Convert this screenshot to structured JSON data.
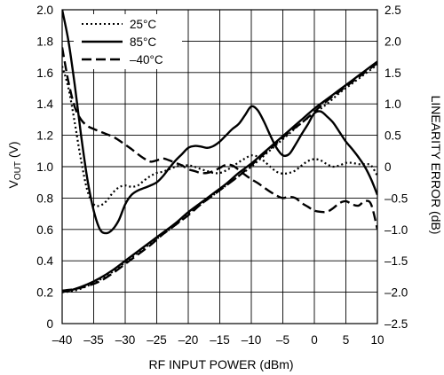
{
  "chart_data": {
    "type": "line",
    "xlabel": "RF INPUT POWER (dBm)",
    "ylabel_prefix": "V",
    "ylabel_sub": "OUT",
    "ylabel_suffix": " (V)",
    "y2label": "LINEARITY ERROR (dB)",
    "xlim": [
      -40,
      10
    ],
    "ylim": [
      0,
      2.0
    ],
    "y2lim": [
      -2.5,
      2.5
    ],
    "grid": true,
    "legend_position": "top-left",
    "x_ticks": [
      -40,
      -35,
      -30,
      -25,
      -20,
      -15,
      -10,
      -5,
      0,
      5,
      10
    ],
    "x_tick_labels": [
      "–40",
      "–35",
      "–30",
      "–25",
      "–20",
      "–15",
      "–10",
      "–5",
      "0",
      "5",
      "10"
    ],
    "y_ticks": [
      0,
      0.2,
      0.4,
      0.6,
      0.8,
      1.0,
      1.2,
      1.4,
      1.6,
      1.8,
      2.0
    ],
    "y_tick_labels": [
      "0",
      "0.2",
      "0.4",
      "0.6",
      "0.8",
      "1.0",
      "1.2",
      "1.4",
      "1.6",
      "1.8",
      "2.0"
    ],
    "y2_ticks": [
      -2.5,
      -2.0,
      -1.5,
      -1.0,
      -0.5,
      0,
      0.5,
      1.0,
      1.5,
      2.0,
      2.5
    ],
    "y2_tick_labels": [
      "–2.5",
      "–2.0",
      "–1.5",
      "–1.0",
      "–0.5",
      "0",
      "0.5",
      "1.0",
      "1.5",
      "2.0",
      "2.5"
    ],
    "legend": [
      {
        "label": "25°C",
        "style": "dotted"
      },
      {
        "label": "85°C",
        "style": "solid"
      },
      {
        "label": "–40°C",
        "style": "dashed"
      }
    ],
    "series": [
      {
        "name": "25°C",
        "style": "dotted",
        "axis": "left",
        "kind": "vout",
        "x": [
          -40,
          -38,
          -36,
          -34,
          -32,
          -30,
          -28,
          -26,
          -24,
          -22,
          -20,
          -18,
          -16,
          -14,
          -12,
          -10,
          -8,
          -6,
          -4,
          -2,
          0,
          2,
          4,
          6,
          8,
          10
        ],
        "y": [
          0.2,
          0.21,
          0.24,
          0.28,
          0.33,
          0.39,
          0.45,
          0.51,
          0.57,
          0.63,
          0.7,
          0.76,
          0.82,
          0.88,
          0.94,
          1.0,
          1.07,
          1.14,
          1.21,
          1.28,
          1.34,
          1.4,
          1.47,
          1.53,
          1.59,
          1.65
        ]
      },
      {
        "name": "85°C",
        "style": "solid",
        "axis": "left",
        "kind": "vout",
        "x": [
          -40,
          -38,
          -36,
          -34,
          -32,
          -30,
          -28,
          -26,
          -24,
          -22,
          -20,
          -18,
          -16,
          -14,
          -12,
          -10,
          -8,
          -6,
          -4,
          -2,
          0,
          2,
          4,
          6,
          8,
          10
        ],
        "y": [
          0.2,
          0.22,
          0.25,
          0.29,
          0.34,
          0.4,
          0.46,
          0.52,
          0.58,
          0.64,
          0.71,
          0.77,
          0.83,
          0.89,
          0.96,
          1.02,
          1.09,
          1.16,
          1.23,
          1.3,
          1.37,
          1.43,
          1.49,
          1.55,
          1.61,
          1.67
        ]
      },
      {
        "name": "–40°C",
        "style": "dashed",
        "axis": "left",
        "kind": "vout",
        "x": [
          -40,
          -38,
          -36,
          -34,
          -32,
          -30,
          -28,
          -26,
          -24,
          -22,
          -20,
          -18,
          -16,
          -14,
          -12,
          -10,
          -8,
          -6,
          -4,
          -2,
          0,
          2,
          4,
          6,
          8,
          10
        ],
        "y": [
          0.21,
          0.22,
          0.24,
          0.27,
          0.32,
          0.38,
          0.44,
          0.5,
          0.57,
          0.63,
          0.69,
          0.76,
          0.82,
          0.88,
          0.94,
          1.01,
          1.08,
          1.15,
          1.22,
          1.28,
          1.35,
          1.42,
          1.48,
          1.54,
          1.6,
          1.66
        ]
      },
      {
        "name": "25°C",
        "style": "dotted",
        "axis": "right",
        "kind": "error",
        "x": [
          -40,
          -39,
          -38,
          -37,
          -36,
          -35,
          -34,
          -33,
          -32,
          -31,
          -30,
          -29,
          -28,
          -27,
          -26,
          -25,
          -24,
          -23,
          -22,
          -21,
          -20,
          -19,
          -18,
          -17,
          -16,
          -15,
          -14,
          -13,
          -12,
          -11,
          -10,
          -9,
          -8,
          -7,
          -6,
          -5,
          -4,
          -3,
          -2,
          -1,
          0,
          1,
          2,
          3,
          4,
          5,
          6,
          7,
          8,
          9,
          10
        ],
        "y": [
          1.6,
          1.25,
          0.7,
          0.1,
          -0.38,
          -0.6,
          -0.62,
          -0.55,
          -0.42,
          -0.33,
          -0.3,
          -0.32,
          -0.3,
          -0.22,
          -0.15,
          -0.1,
          -0.08,
          -0.04,
          0.0,
          0.02,
          0.02,
          0.0,
          -0.04,
          -0.07,
          -0.1,
          -0.1,
          -0.06,
          0.0,
          0.07,
          0.13,
          0.18,
          0.16,
          0.09,
          0.0,
          -0.08,
          -0.11,
          -0.1,
          -0.06,
          0.02,
          0.09,
          0.12,
          0.1,
          0.04,
          0.0,
          0.02,
          0.06,
          0.06,
          0.04,
          0.04,
          0.02,
          -0.15
        ]
      },
      {
        "name": "85°C",
        "style": "solid",
        "axis": "right",
        "kind": "error",
        "x": [
          -40,
          -39,
          -38,
          -37,
          -36,
          -35,
          -34,
          -33,
          -32,
          -31,
          -30,
          -29,
          -28,
          -27,
          -26,
          -25,
          -24,
          -23,
          -22,
          -21,
          -20,
          -19,
          -18,
          -17,
          -16,
          -15,
          -14,
          -13,
          -12,
          -11,
          -10,
          -9,
          -8,
          -7,
          -6,
          -5,
          -4,
          -3,
          -2,
          -1,
          0,
          1,
          2,
          3,
          4,
          5,
          6,
          7,
          8,
          9,
          10
        ],
        "y": [
          2.5,
          2.0,
          1.3,
          0.5,
          -0.2,
          -0.7,
          -1.0,
          -1.06,
          -1.0,
          -0.85,
          -0.6,
          -0.45,
          -0.38,
          -0.34,
          -0.3,
          -0.25,
          -0.15,
          -0.02,
          0.1,
          0.2,
          0.3,
          0.33,
          0.32,
          0.3,
          0.33,
          0.4,
          0.5,
          0.6,
          0.68,
          0.82,
          0.96,
          0.9,
          0.72,
          0.5,
          0.3,
          0.18,
          0.2,
          0.35,
          0.52,
          0.68,
          0.85,
          0.88,
          0.8,
          0.7,
          0.55,
          0.4,
          0.28,
          0.15,
          0.0,
          -0.2,
          -0.45
        ]
      },
      {
        "name": "–40°C",
        "style": "dashed",
        "axis": "right",
        "kind": "error",
        "x": [
          -40,
          -39,
          -38,
          -37,
          -36,
          -35,
          -34,
          -33,
          -32,
          -31,
          -30,
          -29,
          -28,
          -27,
          -26,
          -25,
          -24,
          -23,
          -22,
          -21,
          -20,
          -19,
          -18,
          -17,
          -16,
          -15,
          -14,
          -13,
          -12,
          -11,
          -10,
          -9,
          -8,
          -7,
          -6,
          -5,
          -4,
          -3,
          -2,
          -1,
          0,
          1,
          2,
          3,
          4,
          5,
          6,
          7,
          8,
          9,
          10
        ],
        "y": [
          1.9,
          1.35,
          0.95,
          0.75,
          0.65,
          0.6,
          0.56,
          0.52,
          0.48,
          0.42,
          0.35,
          0.28,
          0.2,
          0.13,
          0.08,
          0.1,
          0.13,
          0.1,
          0.06,
          0.02,
          -0.04,
          -0.07,
          -0.1,
          -0.1,
          -0.07,
          -0.02,
          0.03,
          0.02,
          -0.05,
          -0.13,
          -0.2,
          -0.26,
          -0.33,
          -0.4,
          -0.46,
          -0.5,
          -0.48,
          -0.5,
          -0.58,
          -0.64,
          -0.7,
          -0.72,
          -0.72,
          -0.66,
          -0.58,
          -0.55,
          -0.6,
          -0.62,
          -0.55,
          -0.6,
          -1.0
        ]
      }
    ]
  }
}
